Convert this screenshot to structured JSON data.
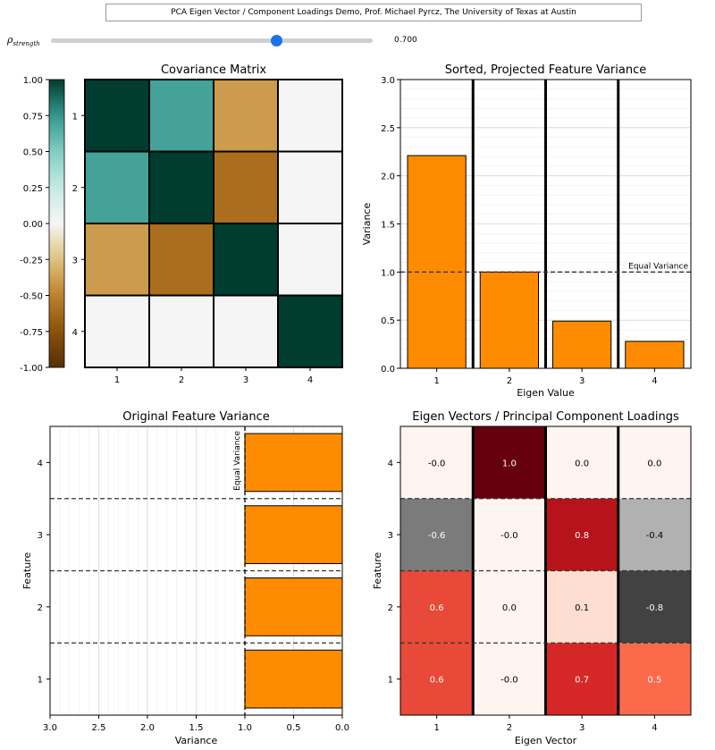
{
  "header": {
    "title": "PCA Eigen Vector / Component Loadings Demo, Prof. Michael Pyrcz, The University of Texas at Austin"
  },
  "slider": {
    "label_main": "ρ",
    "label_sub": "strength",
    "value": 0.7,
    "value_text": "0.700",
    "min": 0.0,
    "max": 1.0
  },
  "colors": {
    "bar": "#ff8c00",
    "thumb": "#1a73e8"
  },
  "chart_data": [
    {
      "type": "heatmap",
      "title": "Covariance Matrix",
      "x_labels": [
        "1",
        "2",
        "3",
        "4"
      ],
      "y_labels": [
        "1",
        "2",
        "3",
        "4"
      ],
      "values": [
        [
          1.0,
          0.7,
          -0.4,
          0.0
        ],
        [
          0.7,
          1.0,
          -0.6,
          0.0
        ],
        [
          -0.4,
          -0.6,
          1.0,
          0.0
        ],
        [
          0.0,
          0.0,
          0.0,
          1.0
        ]
      ],
      "colorbar": {
        "ticks": [
          "1.00",
          "0.75",
          "0.50",
          "0.25",
          "0.00",
          "-0.25",
          "-0.50",
          "-0.75",
          "-1.00"
        ],
        "range": [
          -1,
          1
        ],
        "colormap": "BrBG"
      }
    },
    {
      "type": "bar",
      "title": "Sorted, Projected Feature Variance",
      "xlabel": "Eigen Value",
      "ylabel": "Variance",
      "categories": [
        "1",
        "2",
        "3",
        "4"
      ],
      "values": [
        2.21,
        1.0,
        0.49,
        0.28
      ],
      "ylim": [
        0,
        3.0
      ],
      "yticks": [
        "0.0",
        "0.5",
        "1.0",
        "1.5",
        "2.0",
        "2.5",
        "3.0"
      ],
      "reference_line": {
        "value": 1.0,
        "label": "Equal Variance"
      },
      "grid": true
    },
    {
      "type": "bar",
      "orientation": "horizontal",
      "title": "Original Feature Variance",
      "xlabel": "Variance",
      "ylabel": "Feature",
      "categories": [
        "1",
        "2",
        "3",
        "4"
      ],
      "values": [
        1.0,
        1.0,
        1.0,
        1.0
      ],
      "xlim": [
        3.0,
        0.0
      ],
      "xticks": [
        "3.0",
        "2.5",
        "2.0",
        "1.5",
        "1.0",
        "0.5",
        "0.0"
      ],
      "reference_line": {
        "value": 1.0,
        "label": "Equal Variance"
      },
      "grid": true
    },
    {
      "type": "heatmap",
      "title": "Eigen Vectors / Principal Component Loadings",
      "xlabel": "Eigen Vector",
      "ylabel": "Feature",
      "x_labels": [
        "1",
        "2",
        "3",
        "4"
      ],
      "y_labels": [
        "1",
        "2",
        "3",
        "4"
      ],
      "rows": [
        {
          "feature": "4",
          "values": [
            -0.0,
            1.0,
            0.0,
            0.0
          ],
          "labels": [
            "-0.0",
            "1.0",
            "0.0",
            "0.0"
          ]
        },
        {
          "feature": "3",
          "values": [
            -0.6,
            -0.0,
            0.8,
            -0.4
          ],
          "labels": [
            "-0.6",
            "-0.0",
            "0.8",
            "-0.4"
          ]
        },
        {
          "feature": "2",
          "values": [
            0.6,
            0.0,
            0.1,
            -0.8
          ],
          "labels": [
            "0.6",
            "0.0",
            "0.1",
            "-0.8"
          ]
        },
        {
          "feature": "1",
          "values": [
            0.6,
            -0.0,
            0.7,
            0.5
          ],
          "labels": [
            "0.6",
            "-0.0",
            "0.7",
            "0.5"
          ]
        }
      ]
    }
  ]
}
